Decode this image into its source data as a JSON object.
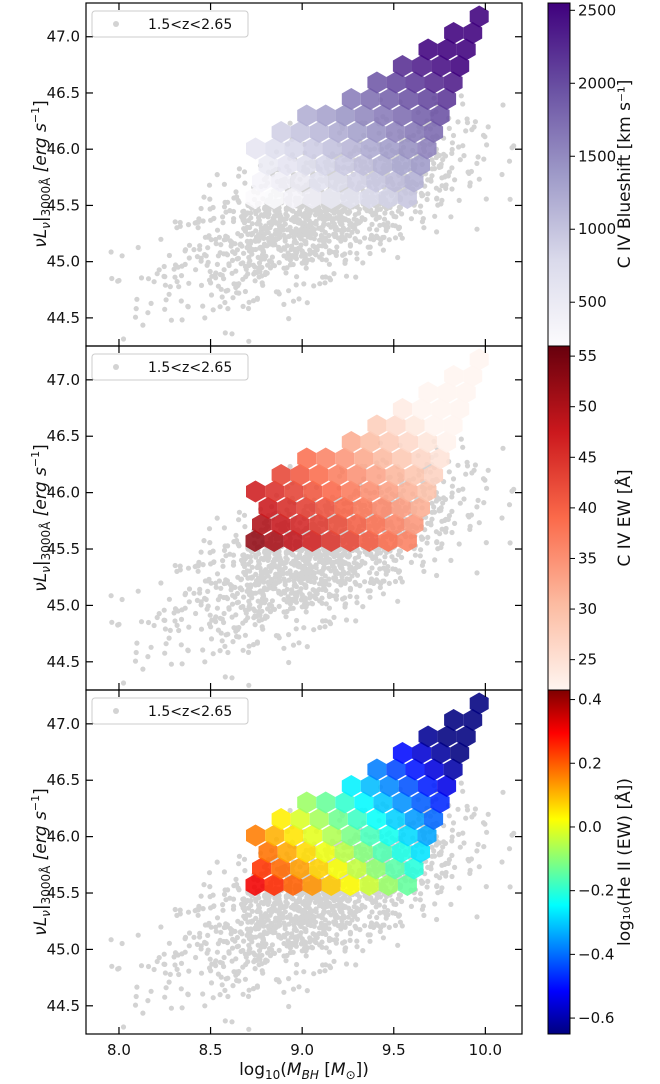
{
  "figure": {
    "xlabel": "log₁₀(M_BH [M_⊙])",
    "xlabel_parts": {
      "pre": "log",
      "sub1": "10",
      "mid": "(",
      "var": "M",
      "sub2": "BH",
      "mid2": " [",
      "var2": "M",
      "sub3": "⊙",
      "post": "])"
    },
    "ylabel_parts": {
      "pre": "νL",
      "sub1": "ν",
      "bar": "|",
      "sub2": "3000Å",
      "units": " [erg s",
      "sup": "−1",
      "close": "]"
    }
  },
  "chart_data": [
    {
      "type": "scatter",
      "panel": "top",
      "legend": "1.5<z<2.65",
      "legend_position": "upper-left",
      "x_ticks": [
        "8.0",
        "8.5",
        "9.0",
        "9.5",
        "10.0"
      ],
      "y_ticks": [
        "44.5",
        "45.0",
        "45.5",
        "46.0",
        "46.5",
        "47.0"
      ],
      "xlim": [
        7.82,
        10.2
      ],
      "ylim": [
        44.25,
        47.3
      ],
      "colorbar": {
        "label": "C IV Blueshift [km s⁻¹]",
        "range": [
          200,
          2550
        ],
        "ticks": [
          "500",
          "1000",
          "1500",
          "2000",
          "2500"
        ],
        "tick_values": [
          500,
          1000,
          1500,
          2000,
          2500
        ],
        "colormap": "Purples",
        "colors": [
          "#fcfbfd",
          "#dadaeb",
          "#9e9ac8",
          "#6a51a3",
          "#3f007d"
        ]
      },
      "background_color": "#d3d3d3"
    },
    {
      "type": "scatter",
      "panel": "middle",
      "legend": "1.5<z<2.65",
      "legend_position": "upper-left",
      "x_ticks": [
        "8.0",
        "8.5",
        "9.0",
        "9.5",
        "10.0"
      ],
      "y_ticks": [
        "44.5",
        "45.0",
        "45.5",
        "46.0",
        "46.5",
        "47.0"
      ],
      "xlim": [
        7.82,
        10.2
      ],
      "ylim": [
        44.25,
        47.3
      ],
      "colorbar": {
        "label": "C IV EW [Å]",
        "range": [
          22,
          56
        ],
        "ticks": [
          "25",
          "30",
          "35",
          "40",
          "45",
          "50",
          "55"
        ],
        "tick_values": [
          25,
          30,
          35,
          40,
          45,
          50,
          55
        ],
        "colormap": "Reds",
        "colors": [
          "#fff5f0",
          "#fcbba1",
          "#fb6a4a",
          "#cb181d",
          "#67000d"
        ]
      },
      "background_color": "#d3d3d3"
    },
    {
      "type": "scatter",
      "panel": "bottom",
      "legend": "1.5<z<2.65",
      "legend_position": "upper-left",
      "x_ticks": [
        "8.0",
        "8.5",
        "9.0",
        "9.5",
        "10.0"
      ],
      "y_ticks": [
        "44.5",
        "45.0",
        "45.5",
        "46.0",
        "46.5",
        "47.0"
      ],
      "xlim": [
        7.82,
        10.2
      ],
      "ylim": [
        44.25,
        47.3
      ],
      "colorbar": {
        "label": "log₁₀(He II (EW) [Å])",
        "range": [
          -0.65,
          0.43
        ],
        "ticks": [
          "−0.6",
          "−0.4",
          "−0.2",
          "0.0",
          "0.2",
          "0.4"
        ],
        "tick_values": [
          -0.6,
          -0.4,
          -0.2,
          0.0,
          0.2,
          0.4
        ],
        "colormap": "jet",
        "colors": [
          "#00007f",
          "#0000ff",
          "#0080ff",
          "#00ffff",
          "#80ff80",
          "#ffff00",
          "#ff8000",
          "#ff0000",
          "#7f0000"
        ]
      },
      "background_color": "#d3d3d3"
    }
  ]
}
